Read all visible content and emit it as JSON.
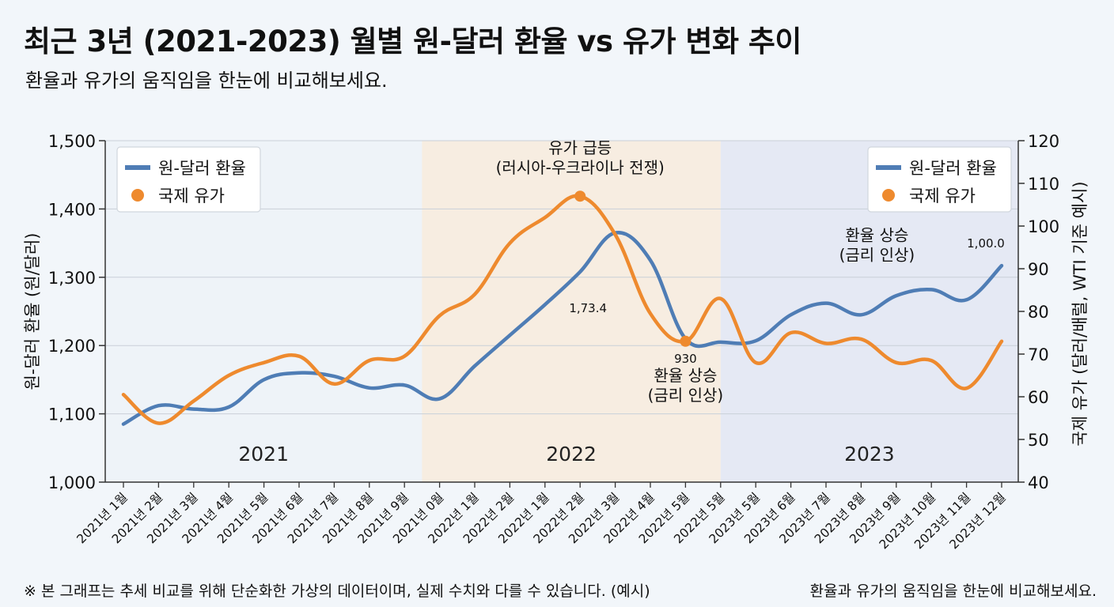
{
  "header": {
    "title": "최근 3년 (2021-2023) 월별 원-달러 환율 vs 유가 변화 추이",
    "subtitle": "환율과 유가의 움직임을 한눈에 비교해보세요."
  },
  "footer": {
    "note": "※ 본 그래프는 추세 비교를 위해 단순화한 가상의 데이터이며, 실제 수치와 다를 수 있습니다. (예시)",
    "note_right": "환율과 유가의 움직임을 한눈에 비교해보세요."
  },
  "chart_data": {
    "type": "line",
    "categories": [
      "2021년 1월",
      "2021년 2월",
      "2021년 3월",
      "2021년 4월",
      "2021년 5월",
      "2021년 6월",
      "2021년 7월",
      "2021년 8월",
      "2021년 9월",
      "2021년 0월",
      "2022년 1월",
      "2022년 2월",
      "2022년 1월",
      "2022년 2월",
      "2022년 3월",
      "2022년 4월",
      "2022년 5월",
      "2022년 5월",
      "2023년 5월",
      "2023년 6월",
      "2023년 7월",
      "2023년 8월",
      "2023년 9월",
      "2023년 10월",
      "2023년 11월",
      "2023년 12월"
    ],
    "xlabel": "",
    "ylabel_left": "원-달러 환율 (원/달러)",
    "ylabel_right": "국제 유가 (달러/배럴, WTI 기준 예시)",
    "ylim_left": [
      1000,
      1500
    ],
    "yticks_left": [
      "1,000",
      "1,100",
      "1,200",
      "1,300",
      "1,400",
      "1,500"
    ],
    "ylim_right": [
      40,
      120
    ],
    "yticks_right": [
      "40",
      "50",
      "60",
      "70",
      "80",
      "90",
      "100",
      "110",
      "120"
    ],
    "grid": true,
    "year_bands": [
      {
        "label": "2021",
        "start": 0,
        "end": 8.5,
        "color": "#eef3f8"
      },
      {
        "label": "2022",
        "start": 8.5,
        "end": 17,
        "color": "#f7ede1"
      },
      {
        "label": "2023",
        "start": 17,
        "end": 25,
        "color": "#e5e9f4"
      }
    ],
    "series": [
      {
        "name": "원-달러 환율",
        "axis": "left",
        "color": "#4f7db5",
        "values": [
          1085,
          1112,
          1107,
          1110,
          1150,
          1160,
          1155,
          1138,
          1142,
          1122,
          1170,
          1215,
          1260,
          1308,
          1365,
          1325,
          1210,
          1205,
          1207,
          1245,
          1262,
          1245,
          1273,
          1282,
          1267,
          1317
        ]
      },
      {
        "name": "국제 유가",
        "axis": "right",
        "color": "#ee8a2e",
        "values": [
          60.5,
          53.8,
          59,
          65,
          68,
          69.5,
          63,
          68.5,
          69.5,
          79,
          84,
          96,
          102,
          107,
          98,
          79.5,
          73,
          83,
          68,
          75,
          72.5,
          73.5,
          68,
          68.5,
          62,
          73
        ]
      }
    ],
    "legend": [
      {
        "label": "원-달러 환율",
        "marker": "line",
        "position": "top-left"
      },
      {
        "label": "국제 유가",
        "marker": "dot",
        "position": "top-left"
      },
      {
        "label": "원-달러 환율",
        "marker": "line",
        "position": "top-right"
      },
      {
        "label": "국제 유가",
        "marker": "dot",
        "position": "top-right"
      }
    ],
    "annotations": [
      {
        "lines": [
          "유가 급등",
          "(러시아-우크라이나 전쟁)"
        ],
        "index": 13,
        "series": "국제 유가",
        "dot": true
      },
      {
        "lines": [
          "1,73.4"
        ],
        "index": 13,
        "series": "원-달러 환율",
        "dot": false
      },
      {
        "lines": [
          "930"
        ],
        "index": 16,
        "series": "국제 유가",
        "dot": true
      },
      {
        "lines": [
          "환율 상승",
          "(금리 인상)"
        ],
        "index": 16,
        "series": "국제 유가",
        "dot": false
      },
      {
        "lines": [
          "환율 상승",
          "(금리 인상)"
        ],
        "index": 21,
        "series": "원-달러 환율",
        "dot": false
      },
      {
        "lines": [
          "1,00.0"
        ],
        "index": 25,
        "series": "원-달러 환율",
        "dot": false
      }
    ]
  }
}
